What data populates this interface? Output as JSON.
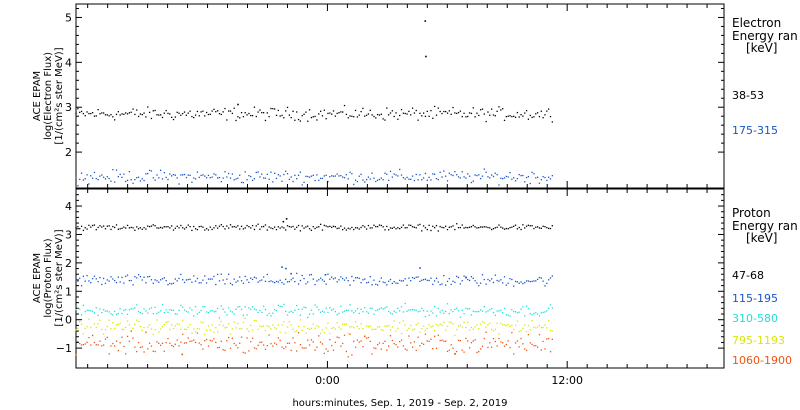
{
  "chart_data": [
    {
      "type": "scatter",
      "panel": "electron",
      "ylabel": [
        "ACE EPAM",
        "log(Electron Flux)",
        "[1/(cm²s ster MeV)]"
      ],
      "ylim": [
        1.2,
        5.3
      ],
      "yticks": [
        2,
        3,
        4,
        5
      ],
      "side_title": [
        "Electron",
        "Energy ran",
        "[keV]"
      ],
      "series": [
        {
          "name": "38-53",
          "color": "#000000",
          "y_center": 2.85,
          "y_jitter": 0.07
        },
        {
          "name": "175-315",
          "color": "#1a55c8",
          "y_center": 1.45,
          "y_jitter": 0.07
        }
      ],
      "outliers": [
        {
          "x": 53.9,
          "y": 4.92,
          "color": "#000000"
        },
        {
          "x": 54.0,
          "y": 4.13,
          "color": "#000000"
        },
        {
          "x": 25.0,
          "y": 3.06,
          "color": "#000000"
        }
      ]
    },
    {
      "type": "scatter",
      "panel": "proton",
      "ylabel": [
        "ACE EPAM",
        "log(Proton Flux)",
        "[1/(cm²s ster MeV)]"
      ],
      "ylim": [
        -1.7,
        4.6
      ],
      "yticks": [
        -1,
        0,
        1,
        2,
        3,
        4
      ],
      "side_title": [
        "Proton",
        "Energy ran",
        "[keV]"
      ],
      "series": [
        {
          "name": "47-68",
          "color": "#000000",
          "y_center": 3.25,
          "y_jitter": 0.05
        },
        {
          "name": "115-195",
          "color": "#1a55c8",
          "y_center": 1.38,
          "y_jitter": 0.1
        },
        {
          "name": "310-580",
          "color": "#22dddd",
          "y_center": 0.32,
          "y_jitter": 0.1
        },
        {
          "name": "795-1193",
          "color": "#d8e800",
          "y_center": -0.25,
          "y_jitter": 0.12
        },
        {
          "name": "1060-1900",
          "color": "#ee5511",
          "y_center": -0.85,
          "y_jitter": 0.18
        }
      ],
      "outliers": [
        {
          "x": 32.0,
          "y": 3.45,
          "color": "#000000"
        },
        {
          "x": 32.5,
          "y": 3.55,
          "color": "#000000"
        },
        {
          "x": 31.8,
          "y": 1.85,
          "color": "#1a55c8"
        },
        {
          "x": 32.4,
          "y": 1.8,
          "color": "#1a55c8"
        },
        {
          "x": 33.2,
          "y": 1.62,
          "color": "#1a55c8"
        },
        {
          "x": 53.1,
          "y": 1.82,
          "color": "#1a55c8"
        },
        {
          "x": 38.5,
          "y": 1.58,
          "color": "#1a55c8"
        },
        {
          "x": 60.2,
          "y": 1.48,
          "color": "#1a55c8"
        },
        {
          "x": 16.4,
          "y": -1.22,
          "color": "#ee5511"
        },
        {
          "x": 58.5,
          "y": -1.2,
          "color": "#ee5511"
        }
      ]
    }
  ],
  "time_axis": {
    "xlim": [
      0,
      100
    ],
    "data_range": [
      0,
      73.5
    ],
    "tick_labels": [
      {
        "x": 38.8,
        "label": "0:00"
      },
      {
        "x": 75.8,
        "label": "12:00"
      }
    ],
    "minor_per_major": 12
  },
  "xlabel": "hours:minutes, Sep.  1, 2019 - Sep.  2, 2019"
}
